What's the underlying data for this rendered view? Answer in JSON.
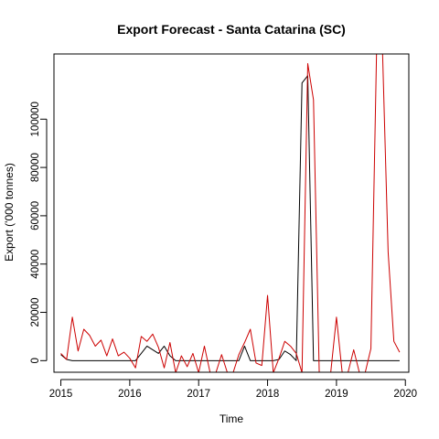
{
  "chart_data": {
    "type": "line",
    "title": "Export Forecast - Santa Catarina (SC)",
    "xlabel": "Time",
    "ylabel": "Export ('000 tonnes)",
    "xlim": [
      2014.9,
      2020.05
    ],
    "ylim": [
      -4800,
      127000
    ],
    "x_ticks": [
      2015,
      2016,
      2017,
      2018,
      2019,
      2020
    ],
    "x_tick_labels": [
      "2015",
      "2016",
      "2017",
      "2018",
      "2019",
      "2020"
    ],
    "y_ticks": [
      0,
      20000,
      40000,
      60000,
      80000,
      100000
    ],
    "y_tick_labels": [
      "0",
      "20000",
      "40000",
      "60000",
      "80000",
      "100000"
    ],
    "grid": false,
    "legend": "none",
    "series": [
      {
        "color": "#000000",
        "x_start": 2015.0,
        "x_step": 0.08333,
        "values": [
          2500,
          500,
          0,
          0,
          0,
          0,
          0,
          0,
          0,
          0,
          0,
          0,
          0,
          0,
          3000,
          6000,
          4500,
          3000,
          6000,
          2000,
          0,
          0,
          0,
          0,
          0,
          0,
          0,
          0,
          0,
          0,
          0,
          0,
          6000,
          0,
          0,
          0,
          0,
          0,
          500,
          4000,
          2500,
          0,
          115000,
          118000,
          0,
          0,
          0,
          0,
          0,
          0,
          0,
          0,
          0,
          0,
          0,
          0,
          0,
          0,
          0,
          0
        ]
      },
      {
        "color": "#cc0000",
        "x_start": 2015.0,
        "x_step": 0.08333,
        "values": [
          3000,
          500,
          18000,
          4000,
          13000,
          10500,
          6000,
          8500,
          2000,
          9000,
          2000,
          3500,
          1000,
          -3000,
          10000,
          8000,
          11000,
          5500,
          -3000,
          7500,
          -5000,
          2000,
          -2500,
          3000,
          -5000,
          6000,
          -5000,
          -5000,
          2500,
          -5000,
          -5000,
          2500,
          7500,
          13000,
          -1000,
          -2000,
          27000,
          -5000,
          1000,
          8000,
          6000,
          3000,
          -5000,
          123000,
          108000,
          -5000,
          -5000,
          -5000,
          18000,
          -5000,
          -5000,
          4500,
          -5000,
          -5000,
          5000,
          130000,
          130000,
          45000,
          8000,
          3500
        ]
      }
    ]
  }
}
